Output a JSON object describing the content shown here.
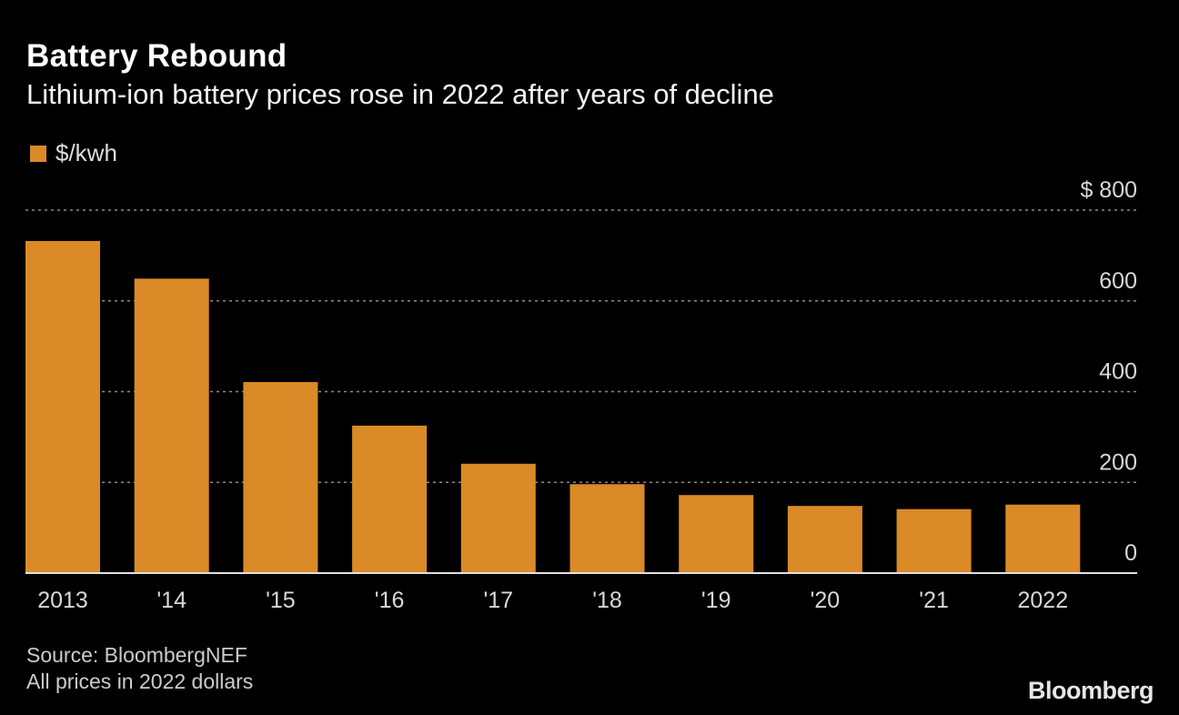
{
  "chart_data": {
    "type": "bar",
    "title": "Battery Rebound",
    "subtitle": "Lithium-ion battery prices rose in 2022 after years of decline",
    "categories": [
      "2013",
      "'14",
      "'15",
      "'16",
      "'17",
      "'18",
      "'19",
      "'20",
      "'21",
      "2022"
    ],
    "series": [
      {
        "name": "$/kwh",
        "values": [
          732,
          649,
          421,
          325,
          241,
          196,
          172,
          148,
          141,
          151
        ]
      }
    ],
    "ylim": [
      0,
      800
    ],
    "yticks": [
      0,
      200,
      400,
      600,
      800
    ],
    "ytick_labels": [
      "0",
      "200",
      "400",
      "600",
      "$ 800"
    ],
    "y_axis_position": "right",
    "grid": true,
    "legend_position": "top-left",
    "bar_color": "#DA8A27",
    "source": "Source: BloombergNEF",
    "note": "All prices in 2022 dollars",
    "logo": "Bloomberg"
  }
}
